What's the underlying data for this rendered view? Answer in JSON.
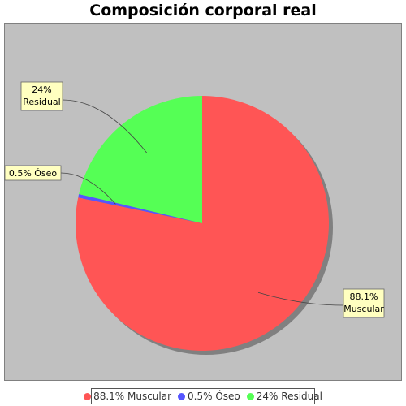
{
  "chart_data": {
    "type": "pie",
    "title": "Composición corporal real",
    "categories": [
      "Muscular",
      "Óseo",
      "Residual"
    ],
    "values": [
      88.1,
      0.5,
      24
    ],
    "slices": [
      {
        "label": "88.1%",
        "label2": "Muscular",
        "legend": "88.1% Muscular",
        "value": 88.1,
        "color": "#ff5555"
      },
      {
        "label": "0.5% Óseo",
        "label2": "",
        "legend": "0.5% Óseo",
        "value": 0.5,
        "color": "#5555ff"
      },
      {
        "label": "24%",
        "label2": "Residual",
        "legend": "24% Residual",
        "value": 24,
        "color": "#55ff55"
      }
    ],
    "start_angle": "12 o'clock",
    "direction": "clockwise",
    "plot_background": "#c0c0c0",
    "legend_position": "bottom"
  }
}
